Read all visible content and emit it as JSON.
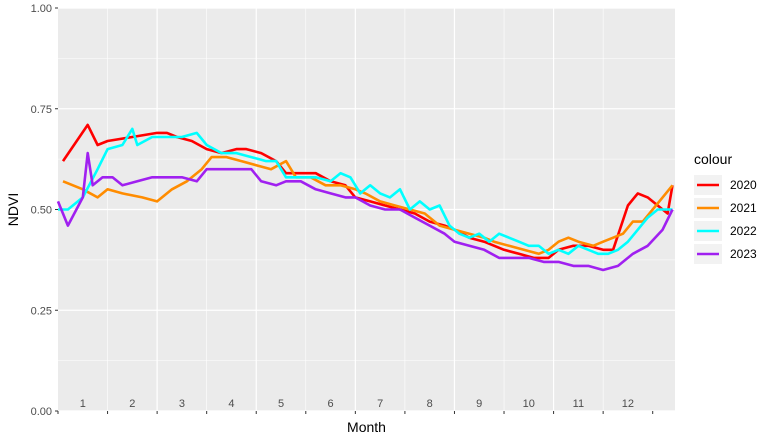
{
  "chart_data": {
    "type": "line",
    "xlabel": "Month",
    "ylabel": "NDVI",
    "ylim": [
      0,
      1
    ],
    "yticks": [
      "0.00",
      "0.25",
      "0.50",
      "0.75",
      "1.00"
    ],
    "xlim": [
      0,
      12
    ],
    "month_labels": [
      "1",
      "2",
      "3",
      "4",
      "5",
      "6",
      "7",
      "8",
      "9",
      "10",
      "11",
      "12"
    ],
    "grid": true,
    "legend": {
      "title": "colour",
      "position": "right"
    },
    "series": [
      {
        "name": "2020",
        "color": "#ff0000",
        "points": [
          [
            0.1,
            0.62
          ],
          [
            0.6,
            0.71
          ],
          [
            0.8,
            0.66
          ],
          [
            1.0,
            0.67
          ],
          [
            1.5,
            0.68
          ],
          [
            2.0,
            0.69
          ],
          [
            2.2,
            0.69
          ],
          [
            2.4,
            0.68
          ],
          [
            2.7,
            0.67
          ],
          [
            3.0,
            0.65
          ],
          [
            3.3,
            0.64
          ],
          [
            3.6,
            0.65
          ],
          [
            3.8,
            0.65
          ],
          [
            4.1,
            0.64
          ],
          [
            4.4,
            0.62
          ],
          [
            4.6,
            0.59
          ],
          [
            4.9,
            0.59
          ],
          [
            5.2,
            0.59
          ],
          [
            5.5,
            0.57
          ],
          [
            5.8,
            0.56
          ],
          [
            6.0,
            0.53
          ],
          [
            6.3,
            0.52
          ],
          [
            6.6,
            0.51
          ],
          [
            6.9,
            0.5
          ],
          [
            7.2,
            0.49
          ],
          [
            7.5,
            0.47
          ],
          [
            7.8,
            0.46
          ],
          [
            8.0,
            0.45
          ],
          [
            8.3,
            0.43
          ],
          [
            8.6,
            0.42
          ],
          [
            9.0,
            0.4
          ],
          [
            9.3,
            0.39
          ],
          [
            9.6,
            0.38
          ],
          [
            9.9,
            0.38
          ],
          [
            10.1,
            0.4
          ],
          [
            10.4,
            0.41
          ],
          [
            10.7,
            0.41
          ],
          [
            11.0,
            0.4
          ],
          [
            11.2,
            0.4
          ],
          [
            11.5,
            0.51
          ],
          [
            11.7,
            0.54
          ],
          [
            11.9,
            0.53
          ],
          [
            12.1,
            0.51
          ],
          [
            12.3,
            0.49
          ],
          [
            12.4,
            0.56
          ]
        ]
      },
      {
        "name": "2021",
        "color": "#ff8c00",
        "points": [
          [
            0.1,
            0.57
          ],
          [
            0.5,
            0.55
          ],
          [
            0.8,
            0.53
          ],
          [
            1.0,
            0.55
          ],
          [
            1.3,
            0.54
          ],
          [
            1.7,
            0.53
          ],
          [
            2.0,
            0.52
          ],
          [
            2.3,
            0.55
          ],
          [
            2.6,
            0.57
          ],
          [
            2.9,
            0.6
          ],
          [
            3.1,
            0.63
          ],
          [
            3.4,
            0.63
          ],
          [
            3.7,
            0.62
          ],
          [
            4.0,
            0.61
          ],
          [
            4.3,
            0.6
          ],
          [
            4.6,
            0.62
          ],
          [
            4.8,
            0.58
          ],
          [
            5.1,
            0.58
          ],
          [
            5.4,
            0.56
          ],
          [
            5.7,
            0.56
          ],
          [
            6.0,
            0.55
          ],
          [
            6.2,
            0.54
          ],
          [
            6.5,
            0.52
          ],
          [
            6.8,
            0.51
          ],
          [
            7.1,
            0.5
          ],
          [
            7.4,
            0.49
          ],
          [
            7.7,
            0.46
          ],
          [
            8.0,
            0.45
          ],
          [
            8.3,
            0.44
          ],
          [
            8.6,
            0.43
          ],
          [
            8.8,
            0.42
          ],
          [
            9.1,
            0.41
          ],
          [
            9.4,
            0.4
          ],
          [
            9.7,
            0.39
          ],
          [
            9.9,
            0.4
          ],
          [
            10.1,
            0.42
          ],
          [
            10.3,
            0.43
          ],
          [
            10.5,
            0.42
          ],
          [
            10.8,
            0.41
          ],
          [
            11.0,
            0.42
          ],
          [
            11.2,
            0.43
          ],
          [
            11.4,
            0.44
          ],
          [
            11.6,
            0.47
          ],
          [
            11.8,
            0.47
          ],
          [
            12.0,
            0.5
          ],
          [
            12.2,
            0.53
          ],
          [
            12.4,
            0.56
          ]
        ]
      },
      {
        "name": "2022",
        "color": "#00ffff",
        "points": [
          [
            0.0,
            0.5
          ],
          [
            0.2,
            0.5
          ],
          [
            0.5,
            0.53
          ],
          [
            0.8,
            0.6
          ],
          [
            1.0,
            0.65
          ],
          [
            1.3,
            0.66
          ],
          [
            1.5,
            0.7
          ],
          [
            1.6,
            0.66
          ],
          [
            1.9,
            0.68
          ],
          [
            2.2,
            0.68
          ],
          [
            2.5,
            0.68
          ],
          [
            2.8,
            0.69
          ],
          [
            3.0,
            0.66
          ],
          [
            3.3,
            0.64
          ],
          [
            3.6,
            0.64
          ],
          [
            3.9,
            0.63
          ],
          [
            4.2,
            0.62
          ],
          [
            4.4,
            0.62
          ],
          [
            4.6,
            0.58
          ],
          [
            4.9,
            0.58
          ],
          [
            5.2,
            0.58
          ],
          [
            5.5,
            0.57
          ],
          [
            5.7,
            0.59
          ],
          [
            5.9,
            0.58
          ],
          [
            6.1,
            0.54
          ],
          [
            6.3,
            0.56
          ],
          [
            6.5,
            0.54
          ],
          [
            6.7,
            0.53
          ],
          [
            6.9,
            0.55
          ],
          [
            7.1,
            0.5
          ],
          [
            7.3,
            0.52
          ],
          [
            7.5,
            0.5
          ],
          [
            7.7,
            0.51
          ],
          [
            7.9,
            0.46
          ],
          [
            8.1,
            0.44
          ],
          [
            8.3,
            0.43
          ],
          [
            8.5,
            0.44
          ],
          [
            8.7,
            0.42
          ],
          [
            8.9,
            0.44
          ],
          [
            9.1,
            0.43
          ],
          [
            9.3,
            0.42
          ],
          [
            9.5,
            0.41
          ],
          [
            9.7,
            0.41
          ],
          [
            9.9,
            0.39
          ],
          [
            10.1,
            0.4
          ],
          [
            10.3,
            0.39
          ],
          [
            10.5,
            0.41
          ],
          [
            10.7,
            0.4
          ],
          [
            10.9,
            0.39
          ],
          [
            11.1,
            0.39
          ],
          [
            11.3,
            0.4
          ],
          [
            11.5,
            0.42
          ],
          [
            11.7,
            0.45
          ],
          [
            11.9,
            0.48
          ],
          [
            12.1,
            0.5
          ],
          [
            12.4,
            0.5
          ]
        ]
      },
      {
        "name": "2023",
        "color": "#a020f0",
        "points": [
          [
            0.0,
            0.52
          ],
          [
            0.2,
            0.46
          ],
          [
            0.5,
            0.53
          ],
          [
            0.6,
            0.64
          ],
          [
            0.7,
            0.56
          ],
          [
            0.9,
            0.58
          ],
          [
            1.1,
            0.58
          ],
          [
            1.3,
            0.56
          ],
          [
            1.6,
            0.57
          ],
          [
            1.9,
            0.58
          ],
          [
            2.2,
            0.58
          ],
          [
            2.5,
            0.58
          ],
          [
            2.8,
            0.57
          ],
          [
            3.0,
            0.6
          ],
          [
            3.3,
            0.6
          ],
          [
            3.6,
            0.6
          ],
          [
            3.9,
            0.6
          ],
          [
            4.1,
            0.57
          ],
          [
            4.4,
            0.56
          ],
          [
            4.6,
            0.57
          ],
          [
            4.9,
            0.57
          ],
          [
            5.2,
            0.55
          ],
          [
            5.5,
            0.54
          ],
          [
            5.8,
            0.53
          ],
          [
            6.0,
            0.53
          ],
          [
            6.3,
            0.51
          ],
          [
            6.6,
            0.5
          ],
          [
            6.9,
            0.5
          ],
          [
            7.2,
            0.48
          ],
          [
            7.5,
            0.46
          ],
          [
            7.8,
            0.44
          ],
          [
            8.0,
            0.42
          ],
          [
            8.3,
            0.41
          ],
          [
            8.6,
            0.4
          ],
          [
            8.9,
            0.38
          ],
          [
            9.2,
            0.38
          ],
          [
            9.5,
            0.38
          ],
          [
            9.8,
            0.37
          ],
          [
            10.1,
            0.37
          ],
          [
            10.4,
            0.36
          ],
          [
            10.7,
            0.36
          ],
          [
            11.0,
            0.35
          ],
          [
            11.3,
            0.36
          ],
          [
            11.6,
            0.39
          ],
          [
            11.9,
            0.41
          ],
          [
            12.2,
            0.45
          ],
          [
            12.4,
            0.5
          ]
        ]
      }
    ]
  }
}
